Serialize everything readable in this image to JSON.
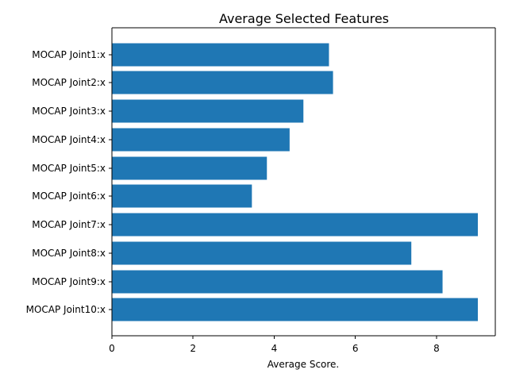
{
  "chart_data": {
    "type": "bar",
    "orientation": "horizontal",
    "title": "Average Selected Features",
    "xlabel": "Average Score.",
    "ylabel": "",
    "categories": [
      "MOCAP Joint1:x",
      "MOCAP Joint2:x",
      "MOCAP Joint3:x",
      "MOCAP Joint4:x",
      "MOCAP Joint5:x",
      "MOCAP Joint6:x",
      "MOCAP Joint7:x",
      "MOCAP Joint8:x",
      "MOCAP Joint9:x",
      "MOCAP Joint10:x"
    ],
    "values": [
      5.35,
      5.45,
      4.72,
      4.38,
      3.82,
      3.45,
      9.02,
      7.38,
      8.15,
      9.02
    ],
    "xlim": [
      0,
      9.45
    ],
    "xticks": [
      0,
      2,
      4,
      6,
      8
    ],
    "grid": false,
    "colors": {
      "bar": "#1f77b4"
    }
  }
}
